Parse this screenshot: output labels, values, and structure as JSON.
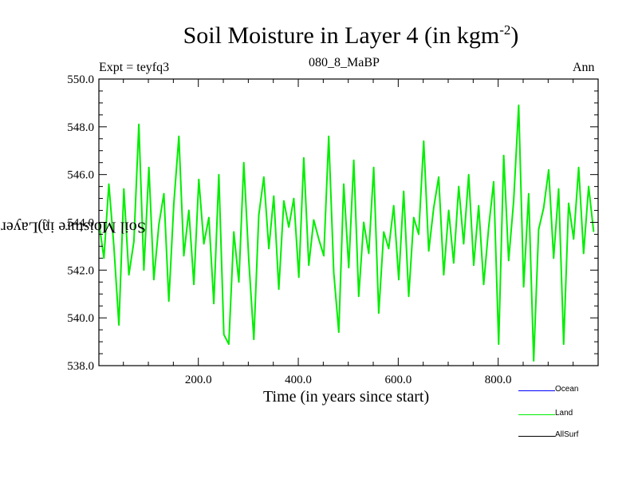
{
  "chart_data": {
    "type": "line",
    "title": "Soil Moisture in Layer 4 (in kgm",
    "title_sup": "-2",
    "title_close": ")",
    "subtitle_left": "Expt = teyfq3",
    "subtitle_center": "080_8_MaBP",
    "subtitle_right": "Ann",
    "xlabel": "Time (in years since start)",
    "ylabel": "Soil Moisture in Layer 4 (in kgm",
    "ylabel_sup": "-2",
    "ylabel_close": ")",
    "xlim": [
      1,
      1000
    ],
    "ylim": [
      538.0,
      550.0
    ],
    "x_ticks": [
      200,
      400,
      600,
      800
    ],
    "x_tick_labels": [
      "200.0",
      "400.0",
      "600.0",
      "800.0"
    ],
    "y_ticks": [
      538,
      540,
      542,
      544,
      546,
      548,
      550
    ],
    "y_tick_labels": [
      "538.0",
      "540.0",
      "542.0",
      "544.0",
      "546.0",
      "548.0",
      "550.0"
    ],
    "series": [
      {
        "name": "Land",
        "color": "#00ee00",
        "x_start": 1,
        "x_step": 10,
        "values": [
          544.0,
          542.5,
          545.6,
          543.0,
          539.7,
          545.4,
          541.8,
          543.2,
          548.1,
          542.0,
          546.3,
          541.6,
          543.9,
          545.2,
          540.7,
          544.8,
          547.6,
          542.6,
          544.5,
          541.4,
          545.8,
          543.1,
          544.2,
          540.6,
          546.0,
          539.3,
          538.9,
          543.6,
          541.5,
          546.5,
          542.4,
          539.1,
          544.3,
          545.9,
          542.9,
          545.1,
          541.2,
          544.9,
          543.8,
          545.0,
          541.7,
          546.7,
          542.2,
          544.1,
          543.3,
          542.6,
          547.6,
          541.9,
          539.4,
          545.6,
          542.1,
          546.6,
          540.9,
          544.0,
          542.7,
          546.3,
          540.2,
          543.6,
          542.9,
          544.7,
          541.6,
          545.3,
          540.9,
          544.2,
          543.5,
          547.4,
          542.8,
          544.6,
          545.9,
          541.8,
          544.5,
          542.3,
          545.5,
          543.1,
          546.0,
          542.2,
          544.7,
          541.4,
          543.8,
          545.7,
          538.9,
          546.8,
          542.4,
          544.9,
          548.9,
          541.3,
          545.2,
          538.2,
          543.7,
          544.6,
          546.2,
          542.5,
          545.4,
          538.9,
          544.8,
          543.3,
          546.3,
          542.7,
          545.5,
          543.6
        ]
      }
    ],
    "legend": [
      {
        "label": "Ocean",
        "color": "#0000ff"
      },
      {
        "label": "Land",
        "color": "#00ee00"
      },
      {
        "label": "AllSurf",
        "color": "#000000"
      }
    ]
  }
}
